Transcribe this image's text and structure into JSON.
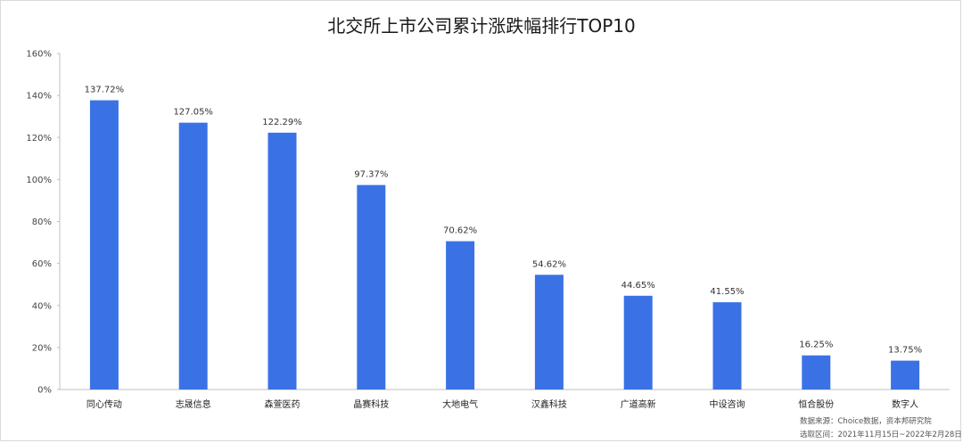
{
  "chart_data": {
    "type": "bar",
    "title": "北交所上市公司累计涨跌幅排行TOP10",
    "xlabel": "",
    "ylabel": "",
    "ylim": [
      0,
      160
    ],
    "yticks": [
      0,
      20,
      40,
      60,
      80,
      100,
      120,
      140,
      160
    ],
    "ytick_labels": [
      "0%",
      "20%",
      "40%",
      "60%",
      "80%",
      "100%",
      "120%",
      "140%",
      "160%"
    ],
    "categories": [
      "同心传动",
      "志晟信息",
      "森萱医药",
      "晶赛科技",
      "大地电气",
      "汉鑫科技",
      "广道高新",
      "中设咨询",
      "恒合股份",
      "数字人"
    ],
    "values": [
      137.72,
      127.05,
      122.29,
      97.37,
      70.62,
      54.62,
      44.65,
      41.55,
      16.25,
      13.75
    ],
    "data_labels": [
      "137.72%",
      "127.05%",
      "122.29%",
      "97.37%",
      "70.62%",
      "54.62%",
      "44.65%",
      "41.55%",
      "16.25%",
      "13.75%"
    ],
    "bar_color": "#3a72e6",
    "grid": false,
    "legend": "none"
  },
  "source": {
    "line1": "数据来源：Choice数据，资本邦研究院",
    "line2": "选取区间：2021年11月15日~2022年2月28日"
  }
}
